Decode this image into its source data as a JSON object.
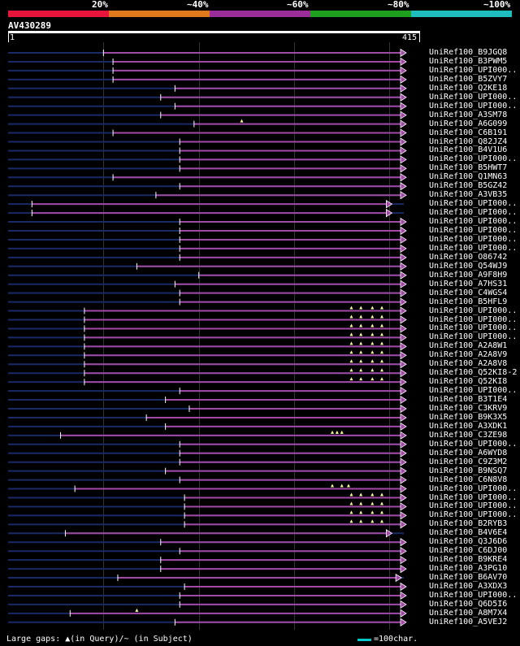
{
  "query": {
    "name": "AV430289",
    "length": 415,
    "start_label": "1",
    "end_label": "415"
  },
  "legend": [
    {
      "label": "20%",
      "color": "#e8143c"
    },
    {
      "label": "~40%",
      "color": "#e0781e"
    },
    {
      "label": "~60%",
      "color": "#9b2d9b"
    },
    {
      "label": "~80%",
      "color": "#1ea01e"
    },
    {
      "label": "~100%",
      "color": "#1ebebe"
    }
  ],
  "colors": {
    "hit": "#a04aa6",
    "unaligned": "#1a2a66",
    "gap": "#ffffa0",
    "grid": "#333333"
  },
  "hits": [
    {
      "label": "UniRef100_B9JGQ8",
      "q_start": 100,
      "q_end": 415,
      "gaps": []
    },
    {
      "label": "UniRef100_B3PWM5",
      "q_start": 110,
      "q_end": 415,
      "gaps": []
    },
    {
      "label": "UniRef100_UPI000..",
      "q_start": 110,
      "q_end": 415,
      "gaps": []
    },
    {
      "label": "UniRef100_B5ZVY7",
      "q_start": 110,
      "q_end": 415,
      "gaps": []
    },
    {
      "label": "UniRef100_Q2KE18",
      "q_start": 175,
      "q_end": 415,
      "gaps": []
    },
    {
      "label": "UniRef100_UPI000..",
      "q_start": 160,
      "q_end": 415,
      "gaps": []
    },
    {
      "label": "UniRef100_UPI000..",
      "q_start": 175,
      "q_end": 415,
      "gaps": []
    },
    {
      "label": "UniRef100_A3SM78",
      "q_start": 160,
      "q_end": 415,
      "gaps": []
    },
    {
      "label": "UniRef100_A6G099",
      "q_start": 195,
      "q_end": 415,
      "gaps": [
        245
      ]
    },
    {
      "label": "UniRef100_C6B191",
      "q_start": 110,
      "q_end": 415,
      "gaps": []
    },
    {
      "label": "UniRef100_Q82JZ4",
      "q_start": 180,
      "q_end": 415,
      "gaps": []
    },
    {
      "label": "UniRef100_B4V1U6",
      "q_start": 180,
      "q_end": 415,
      "gaps": []
    },
    {
      "label": "UniRef100_UPI000..",
      "q_start": 180,
      "q_end": 415,
      "gaps": []
    },
    {
      "label": "UniRef100_B5HWT7",
      "q_start": 180,
      "q_end": 415,
      "gaps": []
    },
    {
      "label": "UniRef100_Q1MN63",
      "q_start": 110,
      "q_end": 415,
      "gaps": []
    },
    {
      "label": "UniRef100_B5GZ42",
      "q_start": 180,
      "q_end": 415,
      "gaps": []
    },
    {
      "label": "UniRef100_A3VB35",
      "q_start": 155,
      "q_end": 415,
      "gaps": []
    },
    {
      "label": "UniRef100_UPI000..",
      "q_start": 25,
      "q_end": 400,
      "gaps": []
    },
    {
      "label": "UniRef100_UPI000..",
      "q_start": 25,
      "q_end": 400,
      "gaps": []
    },
    {
      "label": "UniRef100_UPI000..",
      "q_start": 180,
      "q_end": 415,
      "gaps": []
    },
    {
      "label": "UniRef100_UPI000..",
      "q_start": 180,
      "q_end": 415,
      "gaps": []
    },
    {
      "label": "UniRef100_UPI000..",
      "q_start": 180,
      "q_end": 415,
      "gaps": []
    },
    {
      "label": "UniRef100_UPI000..",
      "q_start": 180,
      "q_end": 415,
      "gaps": []
    },
    {
      "label": "UniRef100_O86742",
      "q_start": 180,
      "q_end": 415,
      "gaps": []
    },
    {
      "label": "UniRef100_Q54WJ9",
      "q_start": 135,
      "q_end": 415,
      "gaps": []
    },
    {
      "label": "UniRef100_A9F8H9",
      "q_start": 200,
      "q_end": 415,
      "gaps": []
    },
    {
      "label": "UniRef100_A7HS31",
      "q_start": 175,
      "q_end": 415,
      "gaps": []
    },
    {
      "label": "UniRef100_C4WGS4",
      "q_start": 180,
      "q_end": 415,
      "gaps": []
    },
    {
      "label": "UniRef100_B5HFL9",
      "q_start": 180,
      "q_end": 415,
      "gaps": []
    },
    {
      "label": "UniRef100_UPI000..",
      "q_start": 80,
      "q_end": 415,
      "gaps": [
        360,
        370,
        382,
        392
      ]
    },
    {
      "label": "UniRef100_UPI000..",
      "q_start": 80,
      "q_end": 415,
      "gaps": [
        360,
        370,
        382,
        392
      ]
    },
    {
      "label": "UniRef100_UPI000..",
      "q_start": 80,
      "q_end": 415,
      "gaps": [
        360,
        370,
        382,
        392
      ]
    },
    {
      "label": "UniRef100_UPI000..",
      "q_start": 80,
      "q_end": 415,
      "gaps": [
        360,
        370,
        382,
        392
      ]
    },
    {
      "label": "UniRef100_A2A8W1",
      "q_start": 80,
      "q_end": 415,
      "gaps": [
        360,
        370,
        382,
        392
      ]
    },
    {
      "label": "UniRef100_A2A8V9",
      "q_start": 80,
      "q_end": 415,
      "gaps": [
        360,
        370,
        382,
        392
      ]
    },
    {
      "label": "UniRef100_A2A8V8",
      "q_start": 80,
      "q_end": 415,
      "gaps": [
        360,
        370,
        382,
        392
      ]
    },
    {
      "label": "UniRef100_Q52KI8-2",
      "q_start": 80,
      "q_end": 415,
      "gaps": [
        360,
        370,
        382,
        392
      ]
    },
    {
      "label": "UniRef100_Q52KI8",
      "q_start": 80,
      "q_end": 415,
      "gaps": [
        360,
        370,
        382,
        392
      ]
    },
    {
      "label": "UniRef100_UPI000..",
      "q_start": 180,
      "q_end": 415,
      "gaps": []
    },
    {
      "label": "UniRef100_B3T1E4",
      "q_start": 165,
      "q_end": 415,
      "gaps": []
    },
    {
      "label": "UniRef100_C3KRV9",
      "q_start": 190,
      "q_end": 415,
      "gaps": []
    },
    {
      "label": "UniRef100_B9K3X5",
      "q_start": 145,
      "q_end": 415,
      "gaps": []
    },
    {
      "label": "UniRef100_A3XDK1",
      "q_start": 165,
      "q_end": 415,
      "gaps": []
    },
    {
      "label": "UniRef100_C3ZE98",
      "q_start": 55,
      "q_end": 415,
      "gaps": [
        340,
        345,
        350
      ]
    },
    {
      "label": "UniRef100_UPI000..",
      "q_start": 180,
      "q_end": 415,
      "gaps": []
    },
    {
      "label": "UniRef100_A6WYD8",
      "q_start": 180,
      "q_end": 415,
      "gaps": []
    },
    {
      "label": "UniRef100_C9Z3M2",
      "q_start": 180,
      "q_end": 415,
      "gaps": []
    },
    {
      "label": "UniRef100_B9NSQ7",
      "q_start": 165,
      "q_end": 415,
      "gaps": []
    },
    {
      "label": "UniRef100_C6N8V8",
      "q_start": 180,
      "q_end": 415,
      "gaps": []
    },
    {
      "label": "UniRef100_UPI000..",
      "q_start": 70,
      "q_end": 415,
      "gaps": [
        340,
        350,
        357
      ]
    },
    {
      "label": "UniRef100_UPI000..",
      "q_start": 185,
      "q_end": 415,
      "gaps": [
        360,
        370,
        382,
        392
      ]
    },
    {
      "label": "UniRef100_UPI000..",
      "q_start": 185,
      "q_end": 415,
      "gaps": [
        360,
        370,
        382,
        392
      ]
    },
    {
      "label": "UniRef100_UPI000..",
      "q_start": 185,
      "q_end": 415,
      "gaps": [
        360,
        370,
        382,
        392
      ]
    },
    {
      "label": "UniRef100_B2RYB3",
      "q_start": 185,
      "q_end": 415,
      "gaps": [
        360,
        370,
        382,
        392
      ]
    },
    {
      "label": "UniRef100_B4V6E4",
      "q_start": 60,
      "q_end": 400,
      "gaps": []
    },
    {
      "label": "UniRef100_Q3J6D6",
      "q_start": 160,
      "q_end": 415,
      "gaps": []
    },
    {
      "label": "UniRef100_C6DJ00",
      "q_start": 180,
      "q_end": 415,
      "gaps": []
    },
    {
      "label": "UniRef100_B9KRE4",
      "q_start": 160,
      "q_end": 415,
      "gaps": []
    },
    {
      "label": "UniRef100_A3PG10",
      "q_start": 160,
      "q_end": 415,
      "gaps": []
    },
    {
      "label": "UniRef100_B6AV70",
      "q_start": 115,
      "q_end": 410,
      "gaps": []
    },
    {
      "label": "UniRef100_A3XDX3",
      "q_start": 185,
      "q_end": 415,
      "gaps": []
    },
    {
      "label": "UniRef100_UPI000..",
      "q_start": 180,
      "q_end": 415,
      "gaps": []
    },
    {
      "label": "UniRef100_Q6D5I6",
      "q_start": 180,
      "q_end": 415,
      "gaps": []
    },
    {
      "label": "UniRef100_A8M7X4",
      "q_start": 65,
      "q_end": 415,
      "gaps": [
        135
      ]
    },
    {
      "label": "UniRef100_A5VEJ2",
      "q_start": 175,
      "q_end": 415,
      "gaps": []
    }
  ],
  "footer": {
    "text": "Large gaps: ▲(in Query)/~ (in Subject)",
    "scale": "=100char."
  }
}
